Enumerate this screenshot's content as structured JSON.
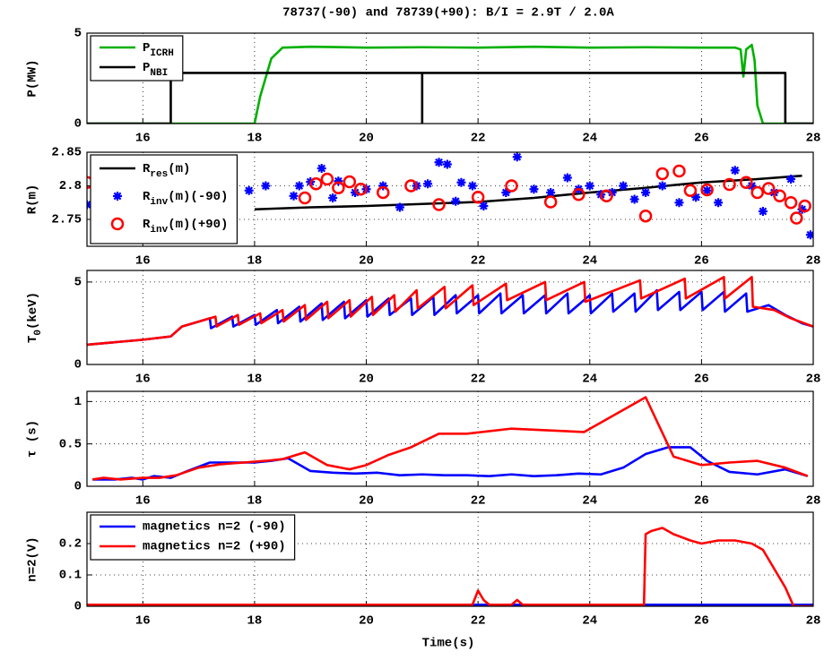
{
  "chart_data": [
    {
      "type": "line",
      "title": "78737(-90) and 78739(+90): B/I = 2.9T / 2.0A",
      "ylabel": "P(MW)",
      "xlim": [
        15,
        28
      ],
      "xticks": [
        16,
        18,
        20,
        22,
        24,
        26,
        28
      ],
      "ylim": [
        0,
        5
      ],
      "yticks": [
        0,
        5
      ],
      "grid": true,
      "legend": "upper left",
      "series": [
        {
          "name": [
            "P",
            "ICRH"
          ],
          "color": "#00b000",
          "x": [
            15,
            18,
            18.1,
            18.3,
            18.5,
            19,
            20,
            21,
            22,
            23,
            24,
            25,
            26,
            26.6,
            26.7,
            26.75,
            26.8,
            26.9,
            26.95,
            27.0,
            27.1,
            28
          ],
          "values": [
            0,
            0,
            1.5,
            3.6,
            4.2,
            4.25,
            4.2,
            4.22,
            4.2,
            4.25,
            4.2,
            4.22,
            4.2,
            4.2,
            4.1,
            2.6,
            4.1,
            4.35,
            3.5,
            1.0,
            0,
            0
          ]
        },
        {
          "name": [
            "P",
            "NBI"
          ],
          "color": "#000000",
          "x": [
            15,
            16.5,
            16.5,
            21,
            21,
            21,
            27.5,
            27.5,
            28
          ],
          "values": [
            0,
            0,
            2.8,
            2.8,
            0,
            2.8,
            2.8,
            0,
            0
          ]
        }
      ]
    },
    {
      "type": "line",
      "ylabel": "R(m)",
      "xlim": [
        15,
        28
      ],
      "xticks": [
        16,
        18,
        20,
        22,
        24,
        26,
        28
      ],
      "ylim": [
        2.71,
        2.85
      ],
      "yticks": [
        2.75,
        2.8,
        2.85
      ],
      "grid": true,
      "legend": "upper left",
      "series": [
        {
          "name": [
            "R",
            "res",
            "(m)"
          ],
          "type": "line",
          "color": "#000000",
          "x": [
            18,
            19,
            20,
            21,
            22,
            23,
            24,
            25,
            26,
            27,
            27.8
          ],
          "values": [
            2.765,
            2.768,
            2.77,
            2.773,
            2.776,
            2.782,
            2.79,
            2.797,
            2.805,
            2.81,
            2.815
          ]
        },
        {
          "name": [
            "R",
            "inv",
            "(m)(-90)"
          ],
          "type": "scatter",
          "marker": "asterisk",
          "color": "#0000ff",
          "x": [
            15.0,
            16.5,
            16.75,
            17.3,
            17.9,
            18.2,
            18.7,
            18.8,
            19.0,
            19.2,
            19.4,
            19.5,
            19.8,
            20.0,
            20.3,
            20.6,
            20.9,
            21.1,
            21.3,
            21.45,
            21.6,
            21.7,
            21.9,
            22.1,
            22.5,
            22.7,
            23.0,
            23.3,
            23.6,
            23.8,
            24.0,
            24.2,
            24.4,
            24.6,
            24.8,
            25.0,
            25.3,
            25.6,
            25.9,
            26.1,
            26.3,
            26.6,
            26.9,
            27.1,
            27.3,
            27.6,
            27.8,
            27.95
          ],
          "values": [
            2.772,
            2.78,
            2.727,
            2.79,
            2.793,
            2.8,
            2.785,
            2.8,
            2.806,
            2.826,
            2.782,
            2.807,
            2.79,
            2.795,
            2.8,
            2.768,
            2.8,
            2.803,
            2.835,
            2.832,
            2.777,
            2.805,
            2.8,
            2.77,
            2.79,
            2.843,
            2.795,
            2.79,
            2.812,
            2.795,
            2.8,
            2.787,
            2.79,
            2.8,
            2.78,
            2.79,
            2.8,
            2.775,
            2.783,
            2.793,
            2.775,
            2.823,
            2.8,
            2.762,
            2.79,
            2.81,
            2.765,
            2.727
          ]
        },
        {
          "name": [
            "R",
            "inv",
            "(m)(+90)"
          ],
          "type": "scatter",
          "marker": "circle",
          "color": "#ff0000",
          "x": [
            15.0,
            18.9,
            19.1,
            19.3,
            19.5,
            19.7,
            19.9,
            20.3,
            20.8,
            21.3,
            22.0,
            22.6,
            23.3,
            23.8,
            24.3,
            25.0,
            25.3,
            25.6,
            25.8,
            26.1,
            26.5,
            26.8,
            27.0,
            27.2,
            27.4,
            27.6,
            27.7,
            27.85
          ],
          "values": [
            2.805,
            2.782,
            2.803,
            2.81,
            2.797,
            2.806,
            2.795,
            2.79,
            2.8,
            2.772,
            2.783,
            2.8,
            2.776,
            2.787,
            2.785,
            2.755,
            2.818,
            2.822,
            2.793,
            2.794,
            2.802,
            2.805,
            2.79,
            2.796,
            2.785,
            2.775,
            2.752,
            2.77
          ]
        }
      ]
    },
    {
      "type": "line",
      "ylabel": [
        "T",
        "0",
        "(keV)"
      ],
      "xlim": [
        15,
        28
      ],
      "xticks": [
        16,
        18,
        20,
        22,
        24,
        26,
        28
      ],
      "ylim": [
        0,
        5.7
      ],
      "yticks": [
        0,
        5
      ],
      "grid": true,
      "series": [
        {
          "color": "#0000ff",
          "x": [
            15,
            15.5,
            16,
            16.5,
            16.7,
            17.0,
            17.2,
            17.22,
            17.6,
            17.62,
            18.0,
            18.02,
            18.4,
            18.42,
            18.8,
            18.82,
            19.2,
            19.22,
            19.6,
            19.62,
            20.0,
            20.02,
            20.4,
            20.42,
            20.8,
            20.82,
            21.2,
            21.22,
            21.6,
            21.62,
            22.0,
            22.02,
            22.4,
            22.42,
            22.8,
            22.82,
            23.2,
            23.22,
            23.6,
            23.62,
            24.0,
            24.02,
            24.4,
            24.42,
            24.8,
            24.82,
            25.2,
            25.22,
            25.6,
            25.62,
            26.0,
            26.02,
            26.4,
            26.42,
            26.8,
            26.82,
            27.2,
            27.5,
            27.8,
            28
          ],
          "values": [
            1.2,
            1.35,
            1.5,
            1.7,
            2.3,
            2.6,
            2.8,
            2.2,
            2.9,
            2.3,
            3.0,
            2.4,
            3.3,
            2.5,
            3.5,
            2.6,
            3.7,
            2.7,
            3.8,
            2.8,
            3.9,
            2.9,
            4.0,
            3.0,
            4.0,
            3.0,
            4.1,
            3.0,
            4.2,
            3.1,
            4.2,
            3.1,
            4.3,
            3.1,
            4.2,
            3.1,
            4.2,
            3.1,
            4.3,
            3.1,
            4.2,
            3.1,
            4.3,
            3.2,
            4.3,
            3.2,
            4.5,
            3.3,
            4.4,
            3.3,
            4.4,
            3.3,
            4.4,
            3.2,
            4.3,
            3.2,
            3.6,
            3.0,
            2.5,
            2.3
          ]
        },
        {
          "color": "#ff0000",
          "x": [
            15,
            15.5,
            16,
            16.5,
            16.7,
            17.0,
            17.3,
            17.32,
            17.7,
            17.72,
            18.1,
            18.12,
            18.5,
            18.52,
            18.9,
            18.92,
            19.3,
            19.32,
            19.7,
            19.72,
            20.1,
            20.12,
            20.5,
            20.52,
            20.9,
            20.92,
            21.4,
            21.42,
            21.9,
            21.92,
            22.5,
            22.52,
            23.2,
            23.22,
            23.9,
            23.92,
            24.9,
            24.92,
            25.7,
            25.72,
            26.4,
            26.42,
            26.9,
            26.92,
            27.3,
            27.6,
            28
          ],
          "values": [
            1.2,
            1.35,
            1.5,
            1.7,
            2.3,
            2.6,
            2.9,
            2.3,
            3.0,
            2.4,
            3.1,
            2.5,
            3.3,
            2.6,
            3.6,
            2.7,
            3.8,
            2.8,
            3.9,
            2.9,
            4.1,
            3.0,
            4.2,
            3.2,
            4.5,
            3.4,
            4.7,
            3.4,
            4.8,
            3.6,
            4.9,
            3.9,
            5.0,
            3.9,
            5.0,
            3.8,
            5.1,
            4.0,
            5.2,
            4.0,
            5.3,
            4.0,
            5.3,
            3.5,
            3.3,
            2.8,
            2.3
          ]
        }
      ]
    },
    {
      "type": "line",
      "ylabel": "τ (s)",
      "xlim": [
        15,
        28
      ],
      "xticks": [
        16,
        18,
        20,
        22,
        24,
        26,
        28
      ],
      "ylim": [
        0,
        1.12
      ],
      "yticks": [
        0,
        0.5,
        1
      ],
      "grid": true,
      "series": [
        {
          "color": "#0000ff",
          "x": [
            15.1,
            15.5,
            15.8,
            16,
            16.2,
            16.5,
            16.8,
            17.2,
            17.6,
            18,
            18.3,
            18.6,
            19,
            19.4,
            19.8,
            20.2,
            20.6,
            21,
            21.4,
            21.8,
            22.2,
            22.6,
            23,
            23.4,
            23.8,
            24.2,
            24.6,
            25,
            25.4,
            25.8,
            26.1,
            26.5,
            27,
            27.5,
            27.9
          ],
          "values": [
            0.08,
            0.08,
            0.1,
            0.08,
            0.12,
            0.1,
            0.18,
            0.28,
            0.28,
            0.28,
            0.3,
            0.33,
            0.18,
            0.16,
            0.15,
            0.16,
            0.13,
            0.14,
            0.13,
            0.13,
            0.12,
            0.14,
            0.12,
            0.13,
            0.15,
            0.14,
            0.22,
            0.38,
            0.46,
            0.46,
            0.3,
            0.17,
            0.14,
            0.2,
            0.12
          ]
        },
        {
          "color": "#ff0000",
          "x": [
            15.1,
            15.3,
            15.6,
            16,
            16.3,
            16.6,
            17,
            17.4,
            17.8,
            18.2,
            18.5,
            18.9,
            19.3,
            19.7,
            20,
            20.4,
            20.8,
            21.3,
            21.8,
            22.6,
            23.9,
            25,
            25.5,
            26,
            26.5,
            27,
            27.5,
            27.9
          ],
          "values": [
            0.08,
            0.1,
            0.08,
            0.1,
            0.1,
            0.13,
            0.22,
            0.26,
            0.28,
            0.3,
            0.32,
            0.4,
            0.25,
            0.2,
            0.25,
            0.37,
            0.46,
            0.62,
            0.62,
            0.68,
            0.64,
            1.05,
            0.35,
            0.25,
            0.28,
            0.3,
            0.22,
            0.12
          ]
        }
      ]
    },
    {
      "type": "line",
      "ylabel": "n=2(V)",
      "xlabel": "Time(s)",
      "xlim": [
        15,
        28
      ],
      "xticks": [
        16,
        18,
        20,
        22,
        24,
        26,
        28
      ],
      "ylim": [
        0,
        0.3
      ],
      "yticks": [
        0,
        0.1,
        0.2
      ],
      "grid": true,
      "legend": "upper left",
      "series": [
        {
          "name": "magnetics n=2 (-90)",
          "color": "#0000ff",
          "x": [
            15,
            28
          ],
          "values": [
            0.005,
            0.005
          ]
        },
        {
          "name": "magnetics n=2 (+90)",
          "color": "#ff0000",
          "x": [
            15,
            21.9,
            22.0,
            22.1,
            22.2,
            22.6,
            22.7,
            22.8,
            24.97,
            25.0,
            25.1,
            25.3,
            25.5,
            25.8,
            26.0,
            26.3,
            26.6,
            26.9,
            27.1,
            27.3,
            27.5,
            27.65,
            27.7,
            28
          ],
          "values": [
            0.005,
            0.005,
            0.05,
            0.02,
            0.005,
            0.005,
            0.02,
            0.005,
            0.005,
            0.23,
            0.24,
            0.25,
            0.23,
            0.21,
            0.2,
            0.21,
            0.21,
            0.2,
            0.18,
            0.12,
            0.06,
            0.0,
            0.0,
            0.0
          ]
        }
      ]
    }
  ]
}
